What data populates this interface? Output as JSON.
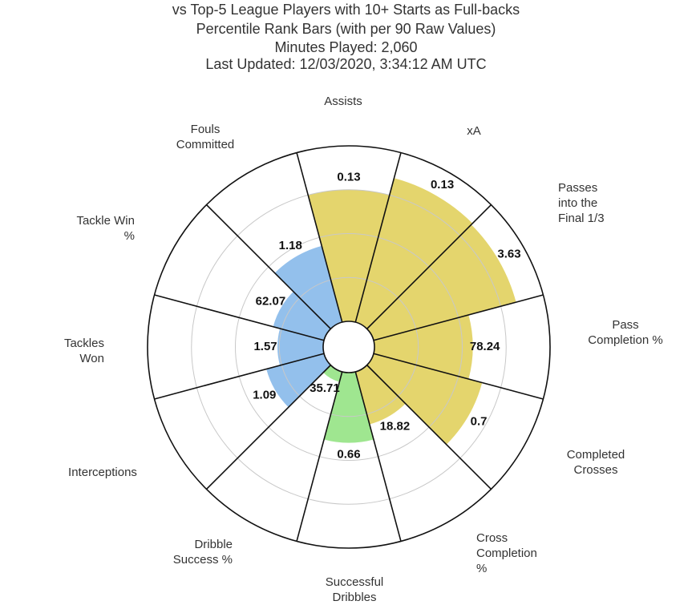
{
  "chart_data": {
    "type": "polar_bar",
    "title": "vs Top-5 League Players with 10+ Starts as Full-backs",
    "subtitle": "Percentile Rank Bars (with per 90 Raw Values)",
    "annotations": [
      "Minutes Played: 2,060",
      "Last Updated: 12/03/2020, 3:34:12 AM UTC"
    ],
    "categories": [
      "Assists",
      "xA",
      "Passes into the Final 1/3",
      "Pass Completion %",
      "Completed Crosses",
      "Cross Completion %",
      "Successful Dribbles",
      "Dribble Success %",
      "Interceptions",
      "Tackles Won",
      "Tackle Win %",
      "Fouls Committed"
    ],
    "values": [
      75,
      85,
      84,
      56,
      64,
      31,
      40,
      6,
      34,
      26,
      30,
      45
    ],
    "raw_values": [
      0.13,
      0.13,
      3.63,
      78.24,
      0.7,
      18.82,
      0.66,
      35.71,
      1.09,
      1.57,
      62.07,
      1.18
    ],
    "colors": [
      "#e4d56d",
      "#e4d56d",
      "#e4d56d",
      "#e4d56d",
      "#e4d56d",
      "#e4d56d",
      "#9fe690",
      "#9fe690",
      "#93c0ec",
      "#93c0ec",
      "#93c0ec",
      "#93c0ec"
    ],
    "rlim": [
      0,
      100
    ],
    "rticks": [
      25,
      50,
      75
    ],
    "grid": true
  }
}
